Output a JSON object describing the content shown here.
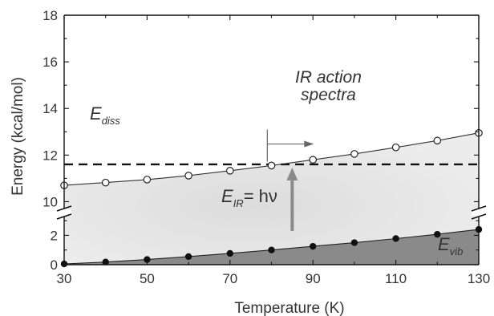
{
  "chart_data": {
    "type": "line",
    "xlabel": "Temperature (K)",
    "ylabel": "Energy (kcal/mol)",
    "xlim": [
      30,
      130
    ],
    "x_ticks": [
      "30",
      "50",
      "70",
      "90",
      "110",
      "130"
    ],
    "y_axis_break": true,
    "y_lower_range": [
      0,
      3.5
    ],
    "y_upper_range": [
      9.5,
      18
    ],
    "y_ticks_lower": [
      "0",
      "2"
    ],
    "y_ticks_upper": [
      "10",
      "12",
      "14",
      "16",
      "18"
    ],
    "grid": false,
    "series": [
      {
        "name": "",
        "marker": "open-circle",
        "x": [
          30,
          40,
          50,
          60,
          70,
          80,
          90,
          100,
          110,
          120,
          130
        ],
        "y": [
          10.7,
          10.82,
          10.95,
          11.12,
          11.33,
          11.55,
          11.8,
          12.05,
          12.33,
          12.62,
          12.95
        ]
      },
      {
        "name": "",
        "marker": "filled-circle",
        "x": [
          30,
          40,
          50,
          60,
          70,
          80,
          90,
          100,
          110,
          120,
          130
        ],
        "y": [
          0.05,
          0.18,
          0.35,
          0.55,
          0.77,
          1.0,
          1.25,
          1.5,
          1.78,
          2.07,
          2.4
        ]
      }
    ],
    "threshold": {
      "y": 11.6,
      "style": "dashed"
    },
    "labels": {
      "diss_main": "E",
      "diss_sub": "diss",
      "vib_main": "E",
      "vib_sub": "vib",
      "ir_main": "E",
      "ir_sub": "IR",
      "ir_eq": "= hν",
      "ir_action_line1": "IR action",
      "ir_action_line2": "spectra"
    },
    "ir_arrow": {
      "x": 85,
      "from_y": 1.1,
      "to_y": 11.6
    },
    "action_marker": {
      "x": 79,
      "y": 12.2
    },
    "colors": {
      "background": "#ffffff",
      "upper_fill": "#e6e6e6",
      "vib_fill": "#8a8a8a",
      "ir_arrow": "#8a8a8a",
      "line": "#333333"
    }
  }
}
